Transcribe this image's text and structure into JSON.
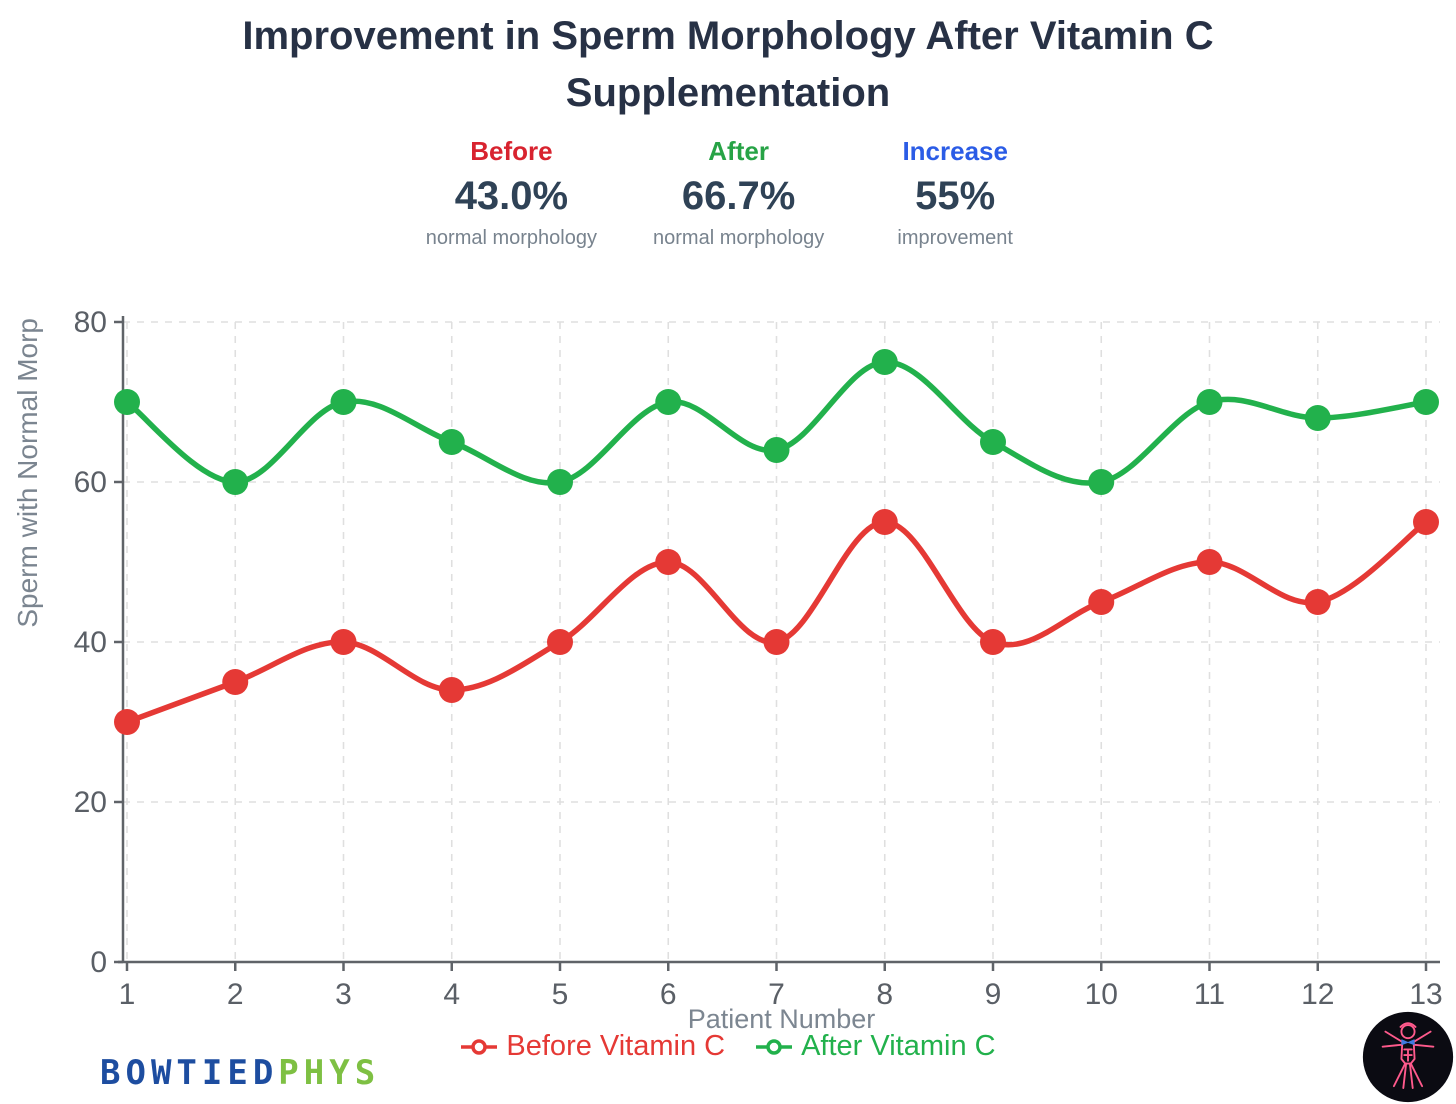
{
  "header": {
    "title": "Improvement in Sperm Morphology After Vitamin C Supplementation"
  },
  "stats": [
    {
      "label": "Before",
      "value": "43.0%",
      "caption": "normal morphology",
      "label_color": "#d8232f"
    },
    {
      "label": "After",
      "value": "66.7%",
      "caption": "normal morphology",
      "label_color": "#27a346"
    },
    {
      "label": "Increase",
      "value": "55%",
      "caption": "improvement",
      "label_color": "#2b5ce6"
    }
  ],
  "chart_data": {
    "type": "line",
    "x": [
      1,
      2,
      3,
      4,
      5,
      6,
      7,
      8,
      9,
      10,
      11,
      12,
      13
    ],
    "series": [
      {
        "name": "Before Vitamin C",
        "color": "#e53935",
        "values": [
          30,
          35,
          40,
          34,
          40,
          50,
          40,
          55,
          40,
          45,
          50,
          45,
          55
        ]
      },
      {
        "name": "After Vitamin C",
        "color": "#22b14c",
        "values": [
          70,
          60,
          70,
          65,
          60,
          70,
          64,
          75,
          65,
          60,
          70,
          68,
          70
        ]
      }
    ],
    "xlabel": "Patient Number",
    "ylabel": "Sperm with Normal Morp",
    "ylim": [
      0,
      80
    ],
    "yticks": [
      0,
      20,
      40,
      60,
      80
    ],
    "grid": true,
    "legend_position": "bottom",
    "axis_color": "#5f6368",
    "tick_label_color": "#5a5f66",
    "grid_color": "#dfdfdf",
    "axis_title_color": "#7c8691"
  },
  "branding": {
    "wordmark_blue": "BOWTIED",
    "wordmark_green": "PHYS",
    "wordmark_blue_color": "#1d4da0",
    "wordmark_green_color": "#7ec043",
    "logo_icon": "vitruvian-man-icon"
  }
}
